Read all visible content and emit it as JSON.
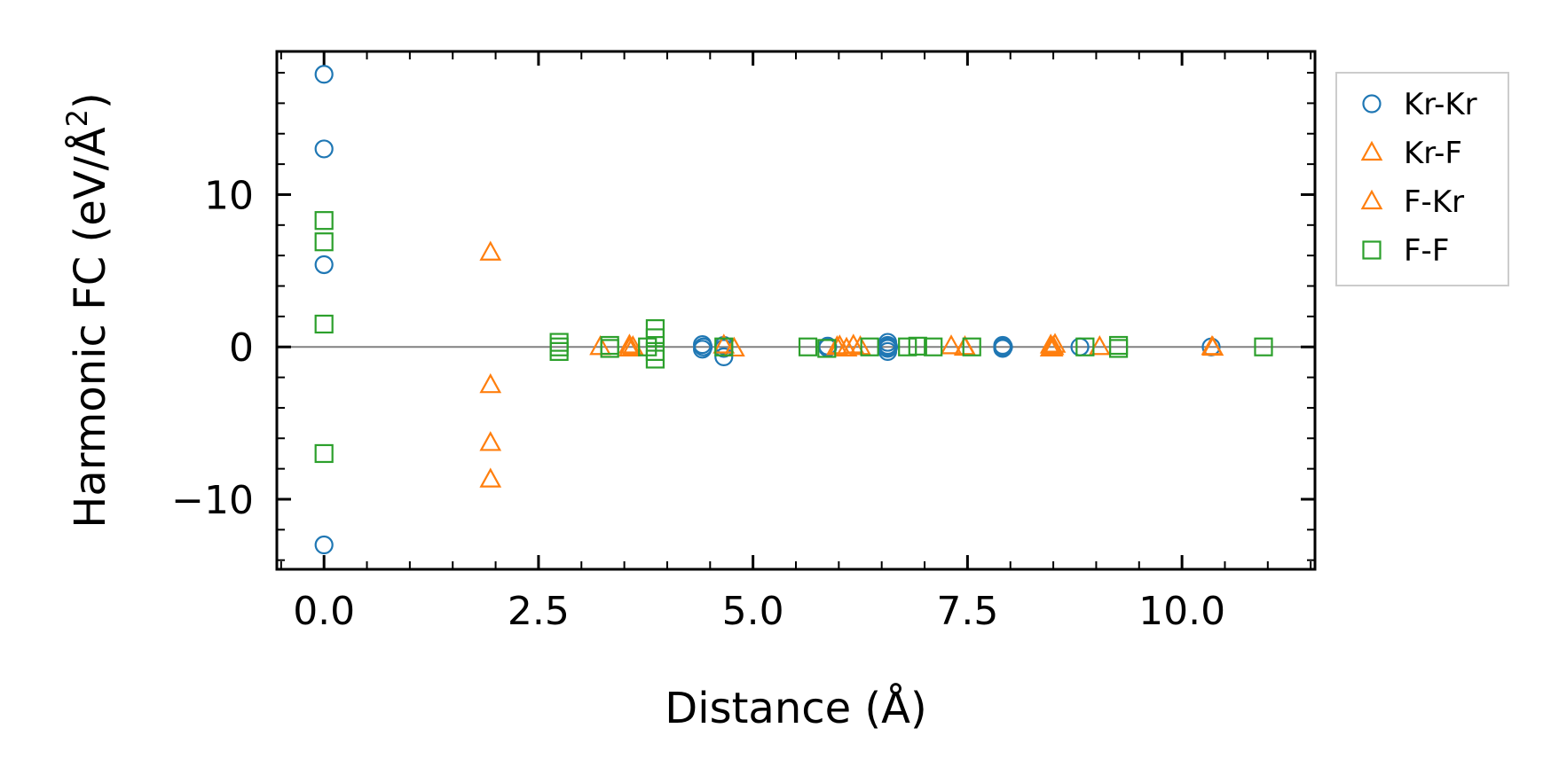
{
  "chart_data": {
    "type": "scatter",
    "title": "",
    "xlabel": "Distance (Å)",
    "ylabel_main": "Harmonic FC (eV/Å",
    "ylabel_sup": "2",
    "ylabel_close": ")",
    "xlim": [
      -0.55,
      11.55
    ],
    "ylim": [
      -14.6,
      19.4
    ],
    "xticks": [
      0.0,
      2.5,
      5.0,
      7.5,
      10.0
    ],
    "xtick_labels": [
      "0.0",
      "2.5",
      "5.0",
      "7.5",
      "10.0"
    ],
    "yticks": [
      -10,
      0,
      10
    ],
    "ytick_labels": [
      "−10",
      "0",
      "10"
    ],
    "grid": false,
    "zero_line": true,
    "legend_position": "outside-right",
    "series": [
      {
        "name": "Kr-Kr",
        "marker": "circle",
        "color": "#1f77b4",
        "points": [
          [
            0.0,
            17.9
          ],
          [
            0.0,
            13.0
          ],
          [
            0.0,
            5.4
          ],
          [
            0.0,
            -13.0
          ],
          [
            4.41,
            0.15
          ],
          [
            4.41,
            -0.15
          ],
          [
            4.42,
            0.0
          ],
          [
            4.66,
            0.1
          ],
          [
            4.66,
            -0.1
          ],
          [
            4.66,
            -0.65
          ],
          [
            5.87,
            0.05
          ],
          [
            5.87,
            -0.05
          ],
          [
            6.57,
            0.3
          ],
          [
            6.57,
            0.1
          ],
          [
            6.57,
            -0.1
          ],
          [
            6.57,
            -0.3
          ],
          [
            6.58,
            0.0
          ],
          [
            7.91,
            0.1
          ],
          [
            7.91,
            -0.1
          ],
          [
            7.92,
            0.0
          ],
          [
            8.81,
            0.0
          ],
          [
            10.34,
            0.0
          ]
        ]
      },
      {
        "name": "Kr-F",
        "marker": "triangle",
        "color": "#ff7f0e",
        "points": [
          [
            1.94,
            6.2
          ],
          [
            1.94,
            -2.5
          ],
          [
            1.94,
            -6.3
          ],
          [
            1.94,
            -8.7
          ],
          [
            3.22,
            0.0
          ],
          [
            3.56,
            0.1
          ],
          [
            3.56,
            -0.1
          ],
          [
            4.66,
            0.1
          ],
          [
            4.78,
            -0.1
          ],
          [
            5.98,
            0.0
          ],
          [
            6.09,
            -0.1
          ],
          [
            6.17,
            0.1
          ],
          [
            7.31,
            0.05
          ],
          [
            7.47,
            0.0
          ],
          [
            8.47,
            0.1
          ],
          [
            8.47,
            -0.1
          ],
          [
            8.5,
            0.0
          ],
          [
            8.52,
            0.15
          ],
          [
            9.04,
            0.0
          ],
          [
            10.35,
            0.0
          ]
        ]
      },
      {
        "name": "F-Kr",
        "marker": "triangle",
        "color": "#ff7f0e",
        "points": [
          [
            3.6,
            0.0
          ],
          [
            6.01,
            0.05
          ],
          [
            6.25,
            0.0
          ],
          [
            7.47,
            -0.05
          ],
          [
            8.49,
            -0.1
          ],
          [
            10.36,
            -0.05
          ]
        ]
      },
      {
        "name": "F-F",
        "marker": "square",
        "color": "#2ca02c",
        "points": [
          [
            0.0,
            8.3
          ],
          [
            0.0,
            6.9
          ],
          [
            0.0,
            1.5
          ],
          [
            0.0,
            -7.0
          ],
          [
            2.74,
            0.3
          ],
          [
            2.74,
            0.0
          ],
          [
            2.74,
            -0.3
          ],
          [
            3.33,
            0.1
          ],
          [
            3.33,
            -0.1
          ],
          [
            3.77,
            0.0
          ],
          [
            3.86,
            1.2
          ],
          [
            3.86,
            0.6
          ],
          [
            3.86,
            -0.3
          ],
          [
            3.86,
            -0.8
          ],
          [
            4.66,
            0.0
          ],
          [
            5.64,
            0.0
          ],
          [
            5.86,
            -0.1
          ],
          [
            6.36,
            0.0
          ],
          [
            6.8,
            0.0
          ],
          [
            6.92,
            0.05
          ],
          [
            7.1,
            0.0
          ],
          [
            7.55,
            0.0
          ],
          [
            8.87,
            0.0
          ],
          [
            9.26,
            0.1
          ],
          [
            9.26,
            -0.1
          ],
          [
            10.95,
            0.0
          ]
        ]
      }
    ]
  }
}
